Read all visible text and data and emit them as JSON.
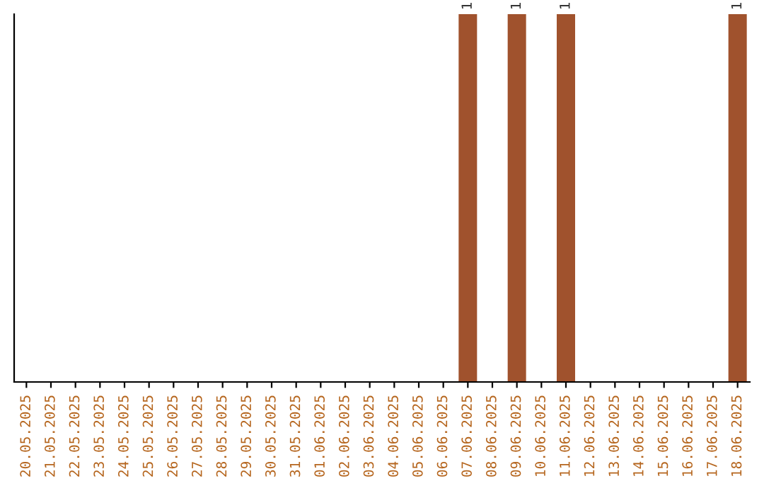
{
  "chart_data": {
    "type": "bar",
    "categories": [
      "20.05.2025",
      "21.05.2025",
      "22.05.2025",
      "23.05.2025",
      "24.05.2025",
      "25.05.2025",
      "26.05.2025",
      "27.05.2025",
      "28.05.2025",
      "29.05.2025",
      "30.05.2025",
      "31.05.2025",
      "01.06.2025",
      "02.06.2025",
      "03.06.2025",
      "04.06.2025",
      "05.06.2025",
      "06.06.2025",
      "07.06.2025",
      "08.06.2025",
      "09.06.2025",
      "10.06.2025",
      "11.06.2025",
      "12.06.2025",
      "13.06.2025",
      "14.06.2025",
      "15.06.2025",
      "16.06.2025",
      "17.06.2025",
      "18.06.2025"
    ],
    "values": [
      null,
      null,
      null,
      null,
      null,
      null,
      null,
      null,
      null,
      null,
      null,
      null,
      null,
      null,
      null,
      null,
      null,
      null,
      1,
      null,
      1,
      null,
      1,
      null,
      null,
      null,
      null,
      null,
      null,
      1
    ],
    "value_labels": [
      null,
      null,
      null,
      null,
      null,
      null,
      null,
      null,
      null,
      null,
      null,
      null,
      null,
      null,
      null,
      null,
      null,
      null,
      "1",
      null,
      "1",
      null,
      "1",
      null,
      null,
      null,
      null,
      null,
      null,
      "1"
    ],
    "color": "#a0522d",
    "tick_labels": "x",
    "grid": false,
    "legend": false
  }
}
